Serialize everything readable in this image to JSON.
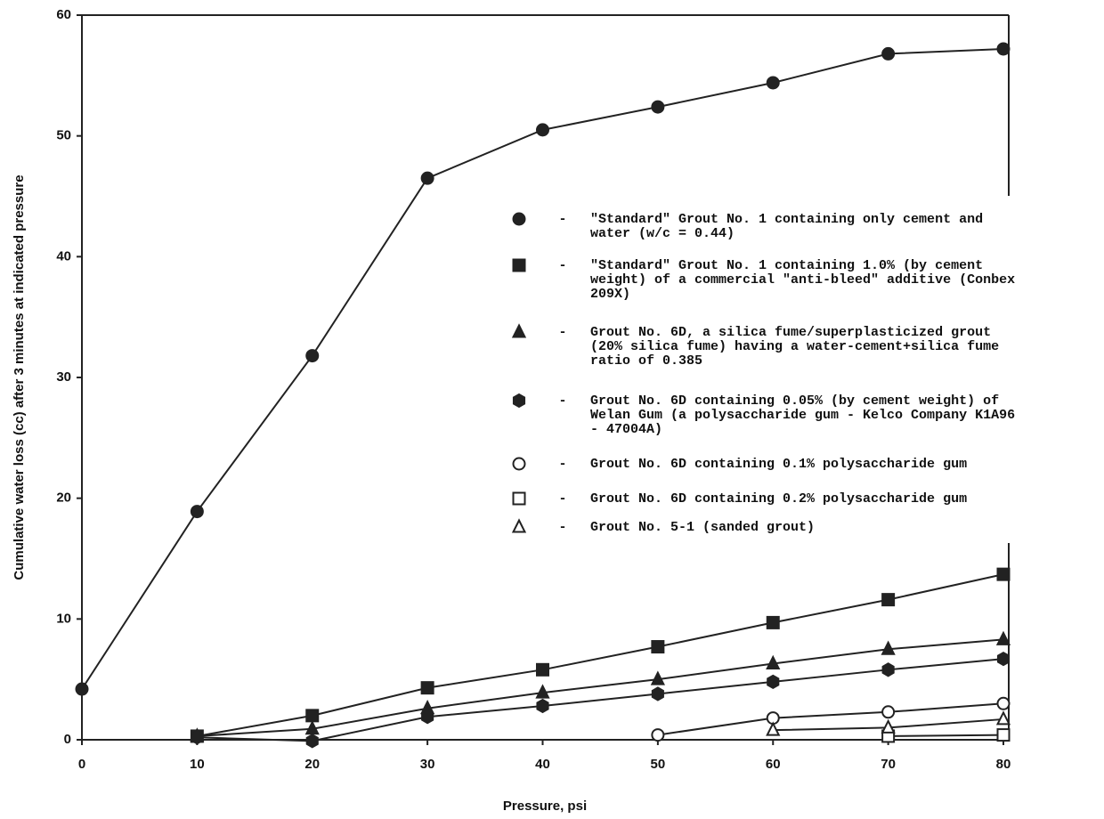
{
  "chart_data": {
    "type": "scatter",
    "x_label": "Pressure, psi",
    "y_label": "Cumulative water loss (cc) after 3 minutes at indicated pressure",
    "x": [
      0,
      10,
      20,
      30,
      40,
      50,
      60,
      70,
      80
    ],
    "xlim": [
      0,
      80
    ],
    "xticks": [
      0,
      10,
      20,
      30,
      40,
      50,
      60,
      70,
      80
    ],
    "ylim": [
      0,
      60
    ],
    "yticks": [
      0,
      10,
      20,
      30,
      40,
      50,
      60
    ],
    "legend_separator": "-",
    "series": [
      {
        "name": "\"Standard\" Grout No. 1 containing only cement and water (w/c = 0.44)",
        "color": "#222222",
        "marker": "circle",
        "filled": true,
        "values": [
          4.2,
          18.9,
          31.8,
          46.5,
          50.5,
          52.4,
          54.4,
          56.8,
          57.2
        ]
      },
      {
        "name": "\"Standard\" Grout No. 1 containing 1.0% (by cement weight) of a commercial \"anti-bleed\" additive (Conbex 209X)",
        "color": "#222222",
        "marker": "square",
        "filled": true,
        "values": [
          null,
          0.3,
          2.0,
          4.3,
          5.8,
          7.7,
          9.7,
          11.6,
          13.7
        ]
      },
      {
        "name": "Grout No. 6D, a silica fume/superplasticized grout (20% silica fume) having a water-cement+silica fume ratio of 0.385",
        "color": "#222222",
        "marker": "triangle",
        "filled": true,
        "values": [
          null,
          0.3,
          0.9,
          2.6,
          3.9,
          5.0,
          6.3,
          7.5,
          8.3
        ]
      },
      {
        "name": "Grout No. 6D containing 0.05% (by cement weight) of Welan Gum (a polysaccharide gum - Kelco Company K1A96 - 47004A)",
        "color": "#222222",
        "marker": "hexagon",
        "filled": true,
        "values": [
          null,
          0.2,
          -0.1,
          1.9,
          2.8,
          3.8,
          4.8,
          5.8,
          6.7
        ]
      },
      {
        "name": "Grout No. 6D containing 0.1% polysaccharide gum",
        "color": "#222222",
        "marker": "circle",
        "filled": false,
        "values": [
          null,
          null,
          null,
          null,
          null,
          0.4,
          1.8,
          2.3,
          3.0
        ]
      },
      {
        "name": "Grout No. 6D containing 0.2% polysaccharide gum",
        "color": "#222222",
        "marker": "square",
        "filled": false,
        "values": [
          null,
          null,
          null,
          null,
          null,
          null,
          null,
          0.3,
          0.4
        ]
      },
      {
        "name": "Grout No. 5-1 (sanded grout)",
        "color": "#222222",
        "marker": "triangle",
        "filled": false,
        "values": [
          null,
          null,
          null,
          null,
          null,
          null,
          0.8,
          1.0,
          1.7
        ]
      }
    ]
  }
}
